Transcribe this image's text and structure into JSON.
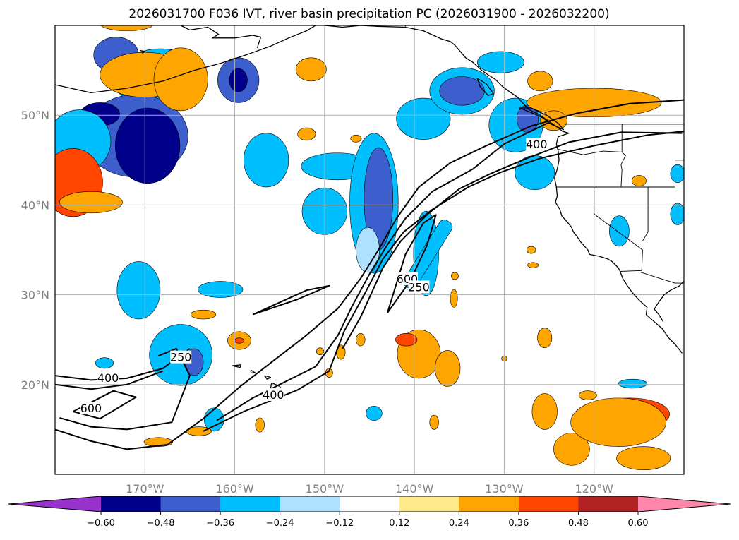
{
  "chart_data": {
    "type": "heatmap",
    "title": "2026031700 F036 IVT, river basin precipitation PC (2026031900 - 2026032200)",
    "map": {
      "projection": "PlateCarree",
      "lon_range": [
        -180,
        -110
      ],
      "lat_range": [
        10,
        60
      ],
      "grid": true,
      "coastlines": true,
      "borders": true,
      "states": true
    },
    "xticks": [
      {
        "lon": -170,
        "label": "170°W"
      },
      {
        "lon": -160,
        "label": "160°W"
      },
      {
        "lon": -150,
        "label": "150°W"
      },
      {
        "lon": -140,
        "label": "140°W"
      },
      {
        "lon": -130,
        "label": "130°W"
      },
      {
        "lon": -120,
        "label": "120°W"
      }
    ],
    "yticks": [
      {
        "lat": 50,
        "label": "50°N"
      },
      {
        "lat": 40,
        "label": "40°N"
      },
      {
        "lat": 30,
        "label": "30°N"
      },
      {
        "lat": 20,
        "label": "20°N"
      }
    ],
    "colorbar": {
      "orientation": "horizontal",
      "extend": "both",
      "levels": [
        -0.72,
        -0.6,
        -0.48,
        -0.36,
        -0.24,
        -0.12,
        0.12,
        0.24,
        0.36,
        0.48,
        0.6,
        0.72
      ],
      "colors": [
        "#9932cc",
        "#00008b",
        "#3d5fcd",
        "#00bfff",
        "#ade1ff",
        "#ffffff",
        "#ffeb8c",
        "#ffa500",
        "#ff4500",
        "#b22222",
        "#ff88aa"
      ],
      "tick_values": [
        -0.6,
        -0.48,
        -0.36,
        -0.24,
        -0.12,
        0.12,
        0.24,
        0.36,
        0.48,
        0.6
      ],
      "tick_labels": [
        "−0.60",
        "−0.48",
        "−0.36",
        "−0.24",
        "−0.12",
        "0.12",
        "0.24",
        "0.36",
        "0.48",
        "0.60"
      ]
    },
    "ivt_contours": {
      "levels": [
        250,
        400,
        600
      ],
      "labels": [
        {
          "text": "250",
          "lon": -166,
          "lat": 23.0
        },
        {
          "text": "400",
          "lon": -174.1,
          "lat": 20.7
        },
        {
          "text": "600",
          "lon": -176,
          "lat": 17.3
        },
        {
          "text": "400",
          "lon": -155.7,
          "lat": 18.8
        },
        {
          "text": "600",
          "lon": -140.8,
          "lat": 31.7
        },
        {
          "text": "250",
          "lon": -139.5,
          "lat": 30.8
        },
        {
          "text": "400",
          "lon": -126.4,
          "lat": 46.7
        }
      ],
      "lines": [
        [
          [
            -180,
            15.0
          ],
          [
            -176,
            13.7
          ],
          [
            -172,
            12.8
          ],
          [
            -167.5,
            13.3
          ],
          [
            -163.5,
            16.2
          ],
          [
            -159.5,
            19.7
          ],
          [
            -155.5,
            22.8
          ],
          [
            -152,
            25.5
          ],
          [
            -148.5,
            28.5
          ],
          [
            -146,
            31.8
          ],
          [
            -144,
            35.0
          ],
          [
            -142,
            38.5
          ],
          [
            -139.5,
            42.0
          ],
          [
            -136,
            44.7
          ],
          [
            -132,
            46.6
          ],
          [
            -127,
            48.8
          ],
          [
            -122,
            50.2
          ],
          [
            -116,
            51.3
          ],
          [
            -110,
            51.7
          ]
        ],
        [
          [
            -180,
            21.0
          ],
          [
            -176,
            20.5
          ],
          [
            -172,
            20.7
          ],
          [
            -168,
            21.8
          ],
          [
            -165,
            24.0
          ]
        ],
        [
          [
            -180,
            20.0
          ],
          [
            -176,
            19.5
          ],
          [
            -172,
            20.0
          ],
          [
            -168,
            21.5
          ]
        ],
        [
          [
            -178,
            17.0
          ],
          [
            -173.5,
            19.3
          ],
          [
            -171,
            18.6
          ],
          [
            -175,
            16.2
          ],
          [
            -178,
            17.0
          ]
        ],
        [
          [
            -179.5,
            16.3
          ],
          [
            -176,
            15.3
          ],
          [
            -172,
            15.0
          ],
          [
            -167,
            15.8
          ],
          [
            -165,
            21.0
          ],
          [
            -166.5,
            24.0
          ],
          [
            -168.5,
            23.2
          ]
        ],
        [
          [
            -162,
            16.0
          ],
          [
            -158,
            18.5
          ],
          [
            -154,
            20.5
          ],
          [
            -151,
            22.0
          ],
          [
            -148.5,
            25.5
          ],
          [
            -147,
            28.6
          ],
          [
            -145,
            32.3
          ],
          [
            -143,
            35.6
          ],
          [
            -141,
            38.5
          ],
          [
            -138,
            41.5
          ],
          [
            -133.5,
            44.0
          ],
          [
            -130,
            46.8
          ],
          [
            -125,
            49.2
          ]
        ],
        [
          [
            -163.5,
            14.8
          ],
          [
            -159,
            17.0
          ],
          [
            -153,
            19.4
          ],
          [
            -149.5,
            21.5
          ],
          [
            -147.8,
            26.0
          ],
          [
            -145.6,
            30.0
          ],
          [
            -143.5,
            34.0
          ],
          [
            -141.2,
            37.0
          ],
          [
            -138,
            39.5
          ],
          [
            -134,
            42.0
          ],
          [
            -130.5,
            43.6
          ],
          [
            -126,
            45.2
          ],
          [
            -120,
            46.6
          ],
          [
            -114,
            47.8
          ],
          [
            -110,
            48.2
          ]
        ],
        [
          [
            -158,
            27.8
          ],
          [
            -152,
            30.5
          ],
          [
            -149.5,
            31.0
          ],
          [
            -153,
            29.5
          ],
          [
            -158,
            27.8
          ]
        ],
        [
          [
            -148,
            24.0
          ],
          [
            -146,
            27.5
          ],
          [
            -143.5,
            33.0
          ],
          [
            -141.5,
            36.0
          ],
          [
            -138.5,
            39.0
          ],
          [
            -135,
            41.8
          ],
          [
            -131.5,
            43.5
          ],
          [
            -127.5,
            45.2
          ],
          [
            -122.8,
            47.0
          ],
          [
            -117,
            48.1
          ],
          [
            -110.2,
            48.0
          ]
        ],
        [
          [
            -143,
            28.0
          ],
          [
            -141,
            34.5
          ],
          [
            -139,
            38.0
          ],
          [
            -137.6,
            38.9
          ],
          [
            -138.6,
            35.5
          ],
          [
            -140.5,
            31.5
          ],
          [
            -143,
            28.0
          ]
        ]
      ]
    },
    "pc_shading": [
      {
        "value": -0.3,
        "lon": -168.3,
        "lat": 53.9,
        "rx": 5.0,
        "ry": 3.5
      },
      {
        "value": -0.4,
        "lon": -171.0,
        "lat": 47.7,
        "rx": 5.8,
        "ry": 4.6
      },
      {
        "value": -0.5,
        "lon": -169.7,
        "lat": 46.6,
        "rx": 3.6,
        "ry": 4.2
      },
      {
        "value": -0.5,
        "lon": -175.0,
        "lat": 50.1,
        "rx": 2.2,
        "ry": 1.3
      },
      {
        "value": -0.3,
        "lon": -177.3,
        "lat": 47.1,
        "rx": 3.5,
        "ry": 3.5
      },
      {
        "value": -0.4,
        "lon": -173.2,
        "lat": 56.7,
        "rx": 2.5,
        "ry": 2.0
      },
      {
        "value": -0.4,
        "lon": -159.6,
        "lat": 53.9,
        "rx": 2.3,
        "ry": 2.5
      },
      {
        "value": -0.6,
        "lon": -159.6,
        "lat": 53.9,
        "rx": 1.0,
        "ry": 1.3
      },
      {
        "value": -0.3,
        "lon": -156.5,
        "lat": 45.0,
        "rx": 2.5,
        "ry": 3.0
      },
      {
        "value": -0.26,
        "lon": -148.6,
        "lat": 44.3,
        "rx": 4.0,
        "ry": 1.5
      },
      {
        "value": -0.26,
        "lon": -150.0,
        "lat": 39.3,
        "rx": 2.5,
        "ry": 2.6
      },
      {
        "value": -0.26,
        "lon": -144.5,
        "lat": 40.2,
        "rx": 2.7,
        "ry": 7.8
      },
      {
        "value": -0.4,
        "lon": -144.0,
        "lat": 40.7,
        "rx": 1.6,
        "ry": 5.7
      },
      {
        "value": -0.24,
        "lon": -145.2,
        "lat": 35.0,
        "rx": 1.3,
        "ry": 2.5
      },
      {
        "value": -0.3,
        "lon": -139.0,
        "lat": 49.6,
        "rx": 3.0,
        "ry": 2.3
      },
      {
        "value": -0.3,
        "lon": -134.7,
        "lat": 52.7,
        "rx": 3.6,
        "ry": 2.6
      },
      {
        "value": -0.42,
        "lon": -134.7,
        "lat": 52.7,
        "rx": 2.5,
        "ry": 1.6
      },
      {
        "value": -0.35,
        "lon": -130.4,
        "lat": 55.9,
        "rx": 2.6,
        "ry": 1.2
      },
      {
        "value": -0.35,
        "lon": -128.7,
        "lat": 48.9,
        "rx": 3.0,
        "ry": 3.0
      },
      {
        "value": -0.42,
        "lon": -127.4,
        "lat": 49.6,
        "rx": 1.2,
        "ry": 1.5
      },
      {
        "value": -0.3,
        "lon": -126.6,
        "lat": 43.6,
        "rx": 2.2,
        "ry": 1.9
      },
      {
        "value": -0.26,
        "lon": -138.7,
        "lat": 34.6,
        "rx": 1.4,
        "ry": 4.7
      },
      {
        "value": -0.3,
        "lon": -166.0,
        "lat": 23.3,
        "rx": 3.5,
        "ry": 3.4
      },
      {
        "value": -0.4,
        "lon": -164.5,
        "lat": 22.5,
        "rx": 1.0,
        "ry": 1.5
      },
      {
        "value": -0.26,
        "lon": -170.7,
        "lat": 30.5,
        "rx": 2.4,
        "ry": 3.2
      },
      {
        "value": -0.26,
        "lon": -161.6,
        "lat": 30.6,
        "rx": 2.5,
        "ry": 0.9
      },
      {
        "value": -0.3,
        "lon": -174.5,
        "lat": 22.4,
        "rx": 1.0,
        "ry": 0.6
      },
      {
        "value": -0.3,
        "lon": -162.3,
        "lat": 16.1,
        "rx": 1.1,
        "ry": 1.3
      },
      {
        "value": -0.3,
        "lon": -117.2,
        "lat": 37.1,
        "rx": 1.1,
        "ry": 1.7
      },
      {
        "value": -0.3,
        "lon": -110.7,
        "lat": 43.5,
        "rx": 0.8,
        "ry": 1.0
      },
      {
        "value": -0.3,
        "lon": -110.7,
        "lat": 39.0,
        "rx": 0.8,
        "ry": 1.2
      },
      {
        "value": -0.3,
        "lon": -144.5,
        "lat": 16.8,
        "rx": 0.9,
        "ry": 0.8
      },
      {
        "value": -0.3,
        "lon": -115.7,
        "lat": 20.1,
        "rx": 1.6,
        "ry": 0.5
      },
      {
        "value": 0.3,
        "lon": -170.0,
        "lat": 54.5,
        "rx": 5.0,
        "ry": 2.5
      },
      {
        "value": 0.3,
        "lon": -166.0,
        "lat": 54.0,
        "rx": 3.0,
        "ry": 3.5
      },
      {
        "value": 0.3,
        "lon": -172.0,
        "lat": 60.2,
        "rx": 3.0,
        "ry": 0.8
      },
      {
        "value": 0.42,
        "lon": -178.0,
        "lat": 42.5,
        "rx": 3.3,
        "ry": 3.8
      },
      {
        "value": 0.3,
        "lon": -176.0,
        "lat": 40.3,
        "rx": 3.5,
        "ry": 1.2
      },
      {
        "value": 0.3,
        "lon": -151.5,
        "lat": 55.1,
        "rx": 1.7,
        "ry": 1.3
      },
      {
        "value": 0.3,
        "lon": -126.0,
        "lat": 53.8,
        "rx": 1.4,
        "ry": 1.1
      },
      {
        "value": 0.3,
        "lon": -120.0,
        "lat": 51.4,
        "rx": 7.5,
        "ry": 1.6
      },
      {
        "value": 0.3,
        "lon": -124.5,
        "lat": 49.4,
        "rx": 1.5,
        "ry": 1.1
      },
      {
        "value": 0.3,
        "lon": -115.0,
        "lat": 42.7,
        "rx": 0.8,
        "ry": 0.6
      },
      {
        "value": 0.3,
        "lon": -152.0,
        "lat": 47.9,
        "rx": 1.0,
        "ry": 0.7
      },
      {
        "value": 0.3,
        "lon": -139.5,
        "lat": 23.4,
        "rx": 2.4,
        "ry": 2.7
      },
      {
        "value": 0.42,
        "lon": -140.9,
        "lat": 25.0,
        "rx": 1.2,
        "ry": 0.7
      },
      {
        "value": 0.3,
        "lon": -136.3,
        "lat": 21.8,
        "rx": 1.4,
        "ry": 2.0
      },
      {
        "value": 0.3,
        "lon": -135.6,
        "lat": 29.6,
        "rx": 0.4,
        "ry": 1.0
      },
      {
        "value": 0.3,
        "lon": -125.5,
        "lat": 25.2,
        "rx": 0.8,
        "ry": 1.1
      },
      {
        "value": 0.3,
        "lon": -159.5,
        "lat": 24.9,
        "rx": 1.3,
        "ry": 1.0
      },
      {
        "value": 0.42,
        "lon": -159.5,
        "lat": 24.9,
        "rx": 0.5,
        "ry": 0.3
      },
      {
        "value": 0.3,
        "lon": -163.5,
        "lat": 27.8,
        "rx": 1.4,
        "ry": 0.5
      },
      {
        "value": 0.3,
        "lon": -168.5,
        "lat": 13.6,
        "rx": 1.6,
        "ry": 0.5
      },
      {
        "value": 0.3,
        "lon": -164.0,
        "lat": 14.8,
        "rx": 1.4,
        "ry": 0.5
      },
      {
        "value": 0.3,
        "lon": -157.2,
        "lat": 15.5,
        "rx": 0.5,
        "ry": 0.8
      },
      {
        "value": 0.3,
        "lon": -137.8,
        "lat": 15.8,
        "rx": 0.5,
        "ry": 0.8
      },
      {
        "value": 0.3,
        "lon": -122.5,
        "lat": 12.8,
        "rx": 2.0,
        "ry": 1.8
      },
      {
        "value": 0.3,
        "lon": -125.5,
        "lat": 17.0,
        "rx": 1.4,
        "ry": 2.0
      },
      {
        "value": 0.42,
        "lon": -116.0,
        "lat": 16.7,
        "rx": 4.4,
        "ry": 1.8
      },
      {
        "value": 0.3,
        "lon": -117.3,
        "lat": 15.8,
        "rx": 5.3,
        "ry": 2.7
      },
      {
        "value": 0.3,
        "lon": -114.5,
        "lat": 11.8,
        "rx": 3.0,
        "ry": 1.3
      },
      {
        "value": 0.3,
        "lon": -120.7,
        "lat": 18.8,
        "rx": 1.0,
        "ry": 0.5
      },
      {
        "value": 0.3,
        "lon": -146.0,
        "lat": 25.0,
        "rx": 0.5,
        "ry": 0.7
      },
      {
        "value": 0.3,
        "lon": -148.2,
        "lat": 23.6,
        "rx": 0.5,
        "ry": 0.8
      },
      {
        "value": 0.3,
        "lon": -149.5,
        "lat": 21.3,
        "rx": 0.4,
        "ry": 0.5
      },
      {
        "value": 0.3,
        "lon": -130.0,
        "lat": 22.9,
        "rx": 0.3,
        "ry": 0.3
      },
      {
        "value": 0.3,
        "lon": -135.5,
        "lat": 32.1,
        "rx": 0.4,
        "ry": 0.4
      },
      {
        "value": 0.3,
        "lon": -127.0,
        "lat": 35.0,
        "rx": 0.5,
        "ry": 0.4
      },
      {
        "value": 0.3,
        "lon": -126.8,
        "lat": 33.3,
        "rx": 0.6,
        "ry": 0.3
      },
      {
        "value": 0.3,
        "lon": -146.5,
        "lat": 47.4,
        "rx": 0.6,
        "ry": 0.4
      },
      {
        "value": 0.3,
        "lon": -150.5,
        "lat": 23.7,
        "rx": 0.4,
        "ry": 0.4
      }
    ]
  }
}
